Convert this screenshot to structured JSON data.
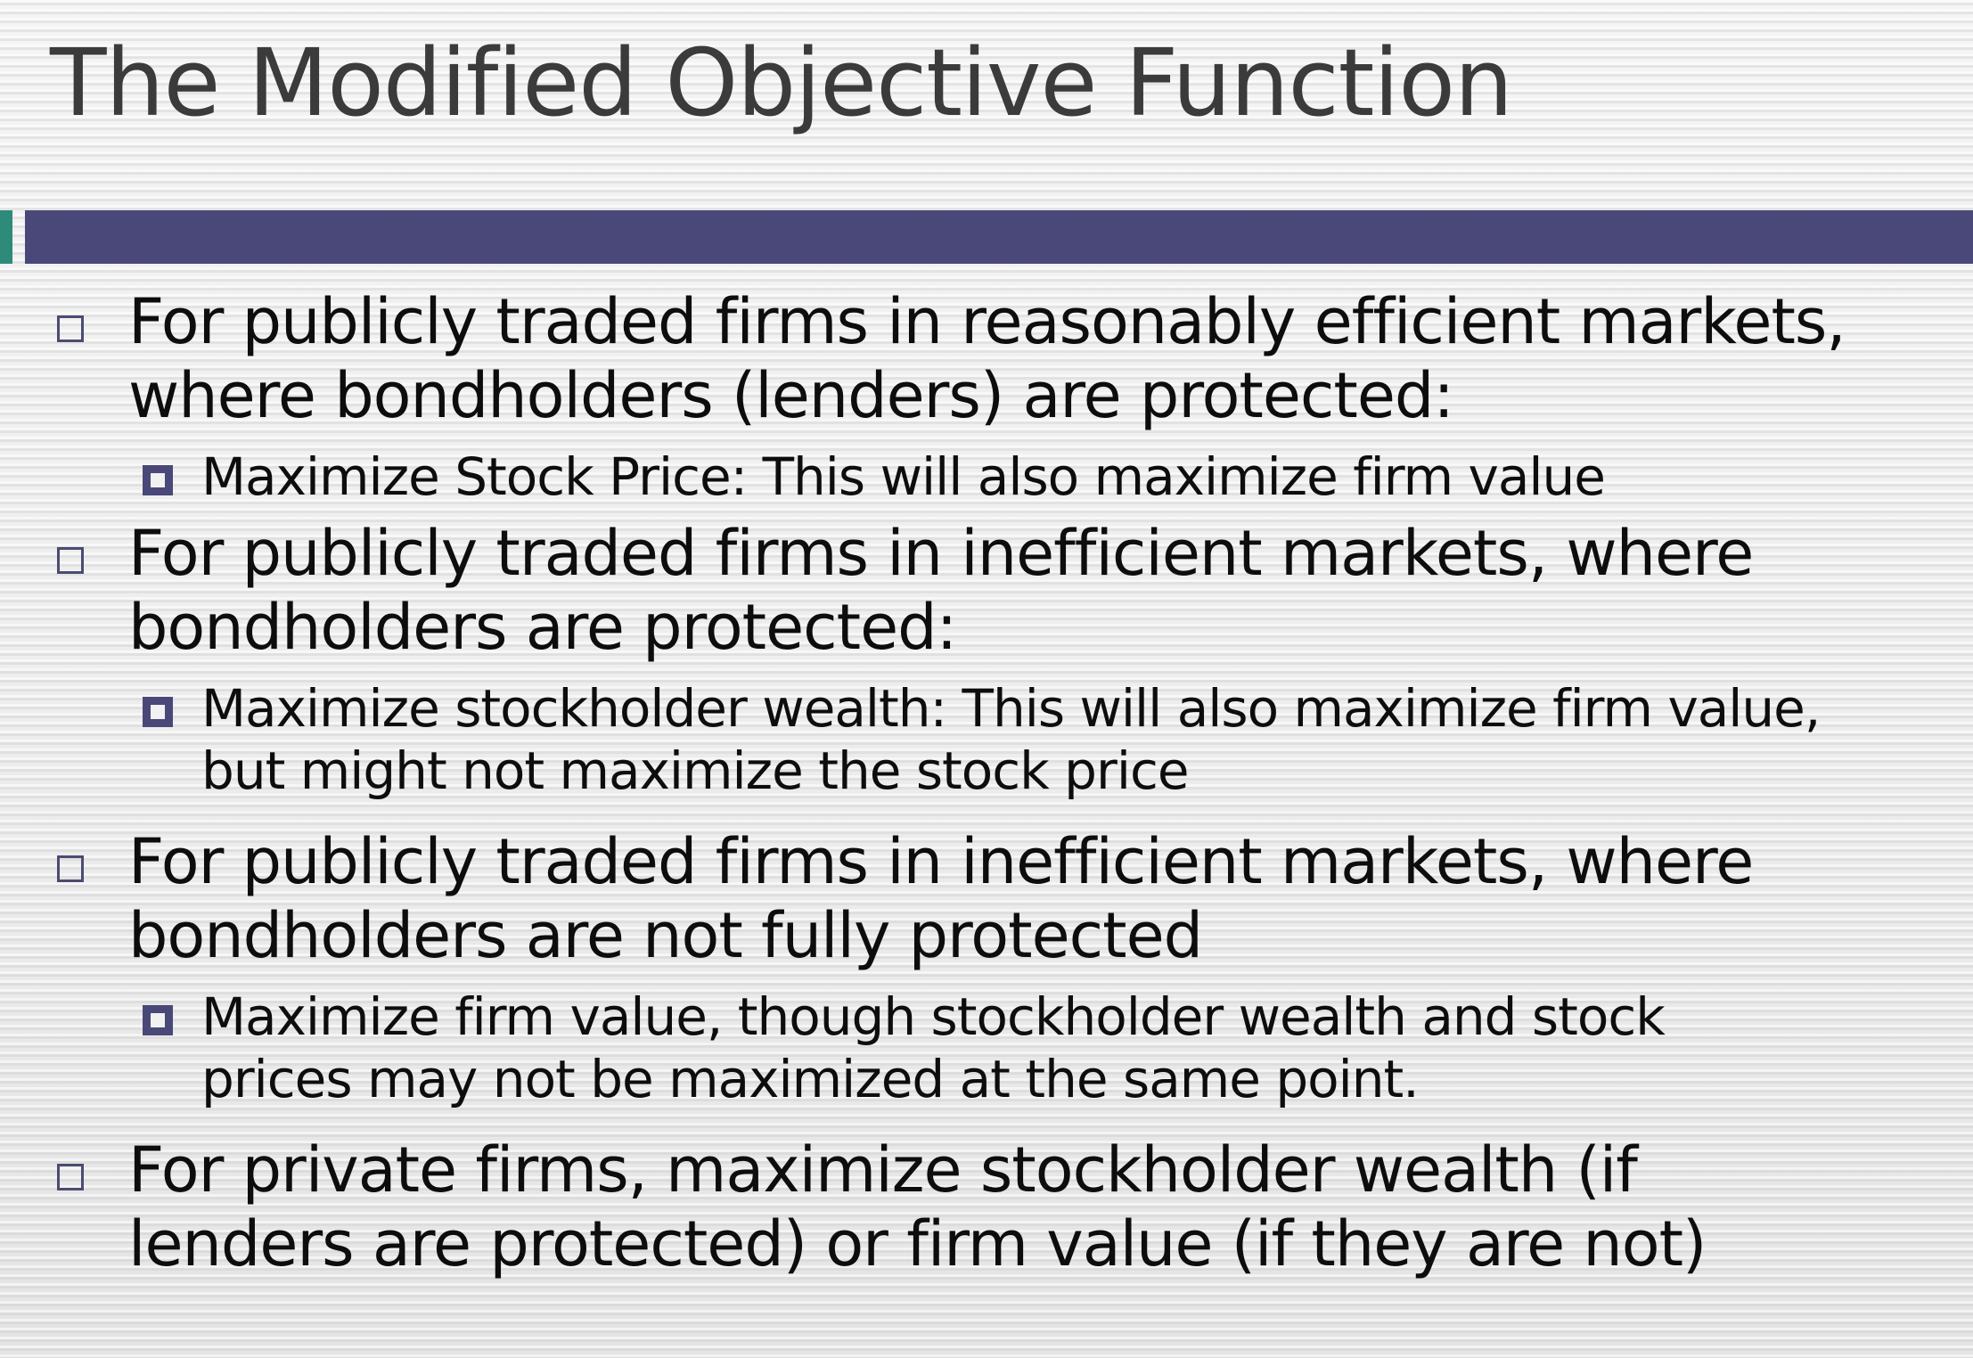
{
  "slide": {
    "title": "The Modified Objective Function",
    "accent_color": "#2e8b7a",
    "bar_color": "#4a4878",
    "bullets": [
      {
        "lines": [
          "For publicly traded firms in reasonably efficient markets,",
          "where bondholders (lenders) are protected:"
        ],
        "sub": {
          "lines": [
            "Maximize Stock Price: This will also maximize firm value"
          ]
        }
      },
      {
        "lines": [
          "For publicly traded firms in inefficient markets, where",
          "bondholders are protected:"
        ],
        "sub": {
          "lines": [
            "Maximize stockholder wealth: This will also maximize firm value,",
            "but might not maximize the stock price"
          ]
        }
      },
      {
        "lines": [
          "For publicly traded firms in inefficient markets, where",
          "bondholders are not fully protected"
        ],
        "sub": {
          "lines": [
            "Maximize firm value, though stockholder wealth and stock",
            "prices may not be maximized at the same point."
          ]
        }
      },
      {
        "lines": [
          "For private firms, maximize stockholder wealth (if",
          "lenders are protected) or firm value (if they are not)"
        ]
      }
    ]
  }
}
